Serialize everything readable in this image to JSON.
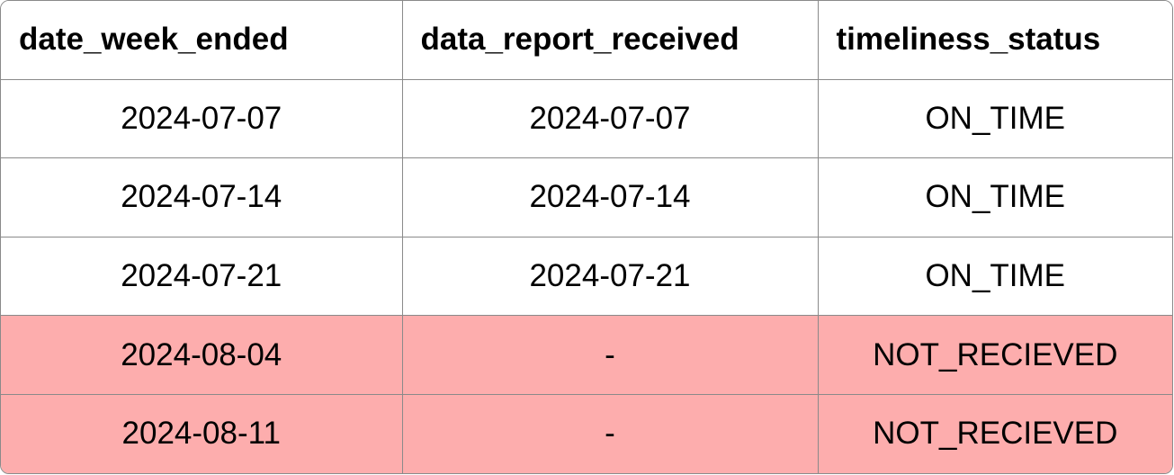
{
  "table": {
    "headers": [
      "date_week_ended",
      "data_report_received",
      "timeliness_status"
    ],
    "rows": [
      {
        "date_week_ended": "2024-07-07",
        "data_report_received": "2024-07-07",
        "timeliness_status": "ON_TIME"
      },
      {
        "date_week_ended": "2024-07-14",
        "data_report_received": "2024-07-14",
        "timeliness_status": "ON_TIME"
      },
      {
        "date_week_ended": "2024-07-21",
        "data_report_received": "2024-07-21",
        "timeliness_status": "ON_TIME"
      },
      {
        "date_week_ended": "2024-08-04",
        "data_report_received": "-",
        "timeliness_status": "NOT_RECIEVED"
      },
      {
        "date_week_ended": "2024-08-11",
        "data_report_received": "-",
        "timeliness_status": "NOT_RECIEVED"
      }
    ]
  },
  "colors": {
    "highlight_row": "#fdadad",
    "border": "#8a8a8a"
  }
}
